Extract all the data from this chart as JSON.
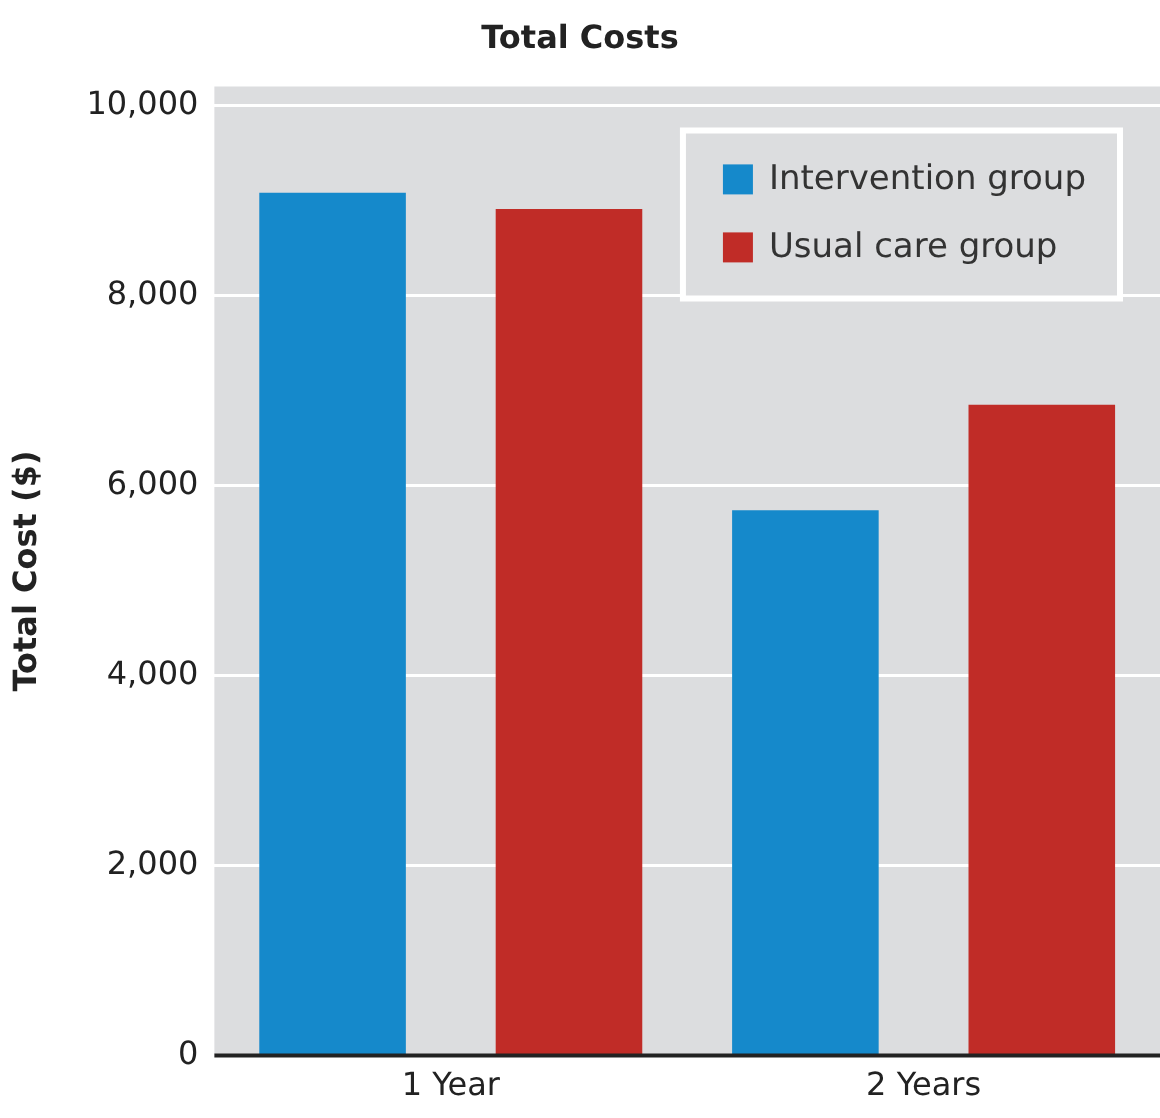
{
  "chart_data": {
    "type": "bar",
    "title": "Total Costs",
    "ylabel": "Total Cost ($)",
    "categories": [
      "1 Year",
      "2 Years"
    ],
    "series": [
      {
        "name": "Intervention group",
        "color": "#1589cb",
        "values": [
          9080,
          5740
        ]
      },
      {
        "name": "Usual care group",
        "color": "#c02c27",
        "values": [
          8910,
          6850
        ]
      }
    ],
    "ylim": [
      0,
      10200
    ],
    "yticks": [
      0,
      {
        "value": 2000,
        "label": "2,000"
      },
      {
        "value": 4000,
        "label": "4,000"
      },
      {
        "value": 6000,
        "label": "6,000"
      },
      {
        "value": 8000,
        "label": "8,000"
      },
      {
        "value": 10000,
        "label": "10,000"
      }
    ],
    "grid": "y",
    "legend": "top right"
  }
}
